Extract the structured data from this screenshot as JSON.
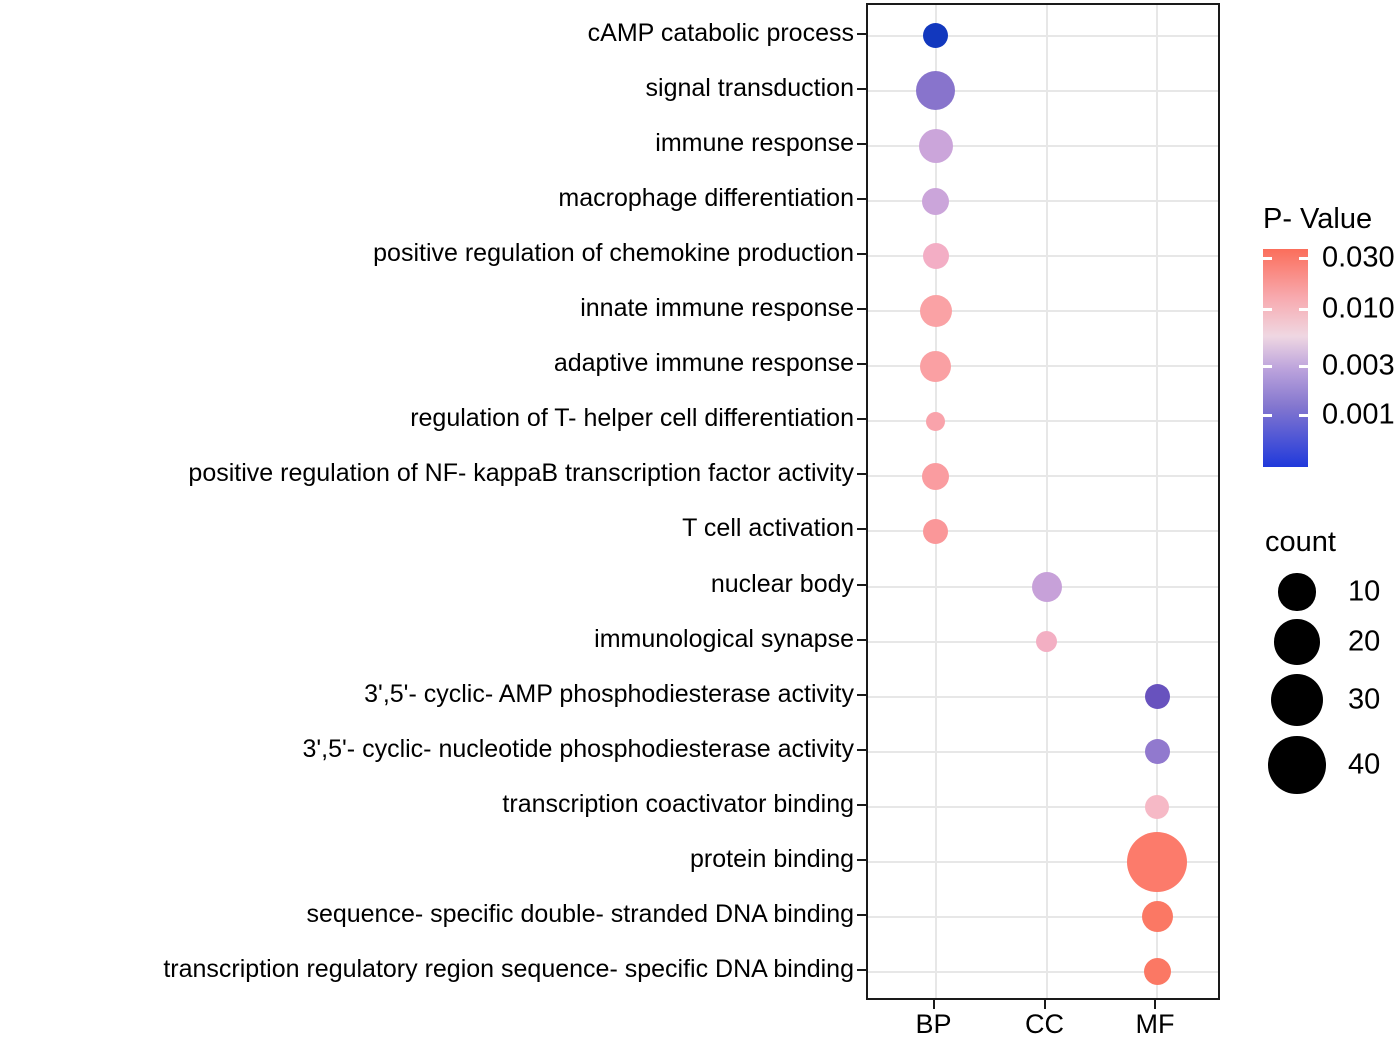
{
  "chart_data": {
    "type": "scatter",
    "subtype": "bubble-dotplot-go-enrichment",
    "title": "",
    "xlabel": "",
    "ylabel": "",
    "x_categories": [
      "BP",
      "CC",
      "MF"
    ],
    "grid": true,
    "legend_position": "right",
    "points": [
      {
        "term": "cAMP catabolic process",
        "category": "BP",
        "count": 2,
        "p_value": 0.0004,
        "color": "#1238BE",
        "r": 12.5
      },
      {
        "term": "signal transduction",
        "category": "BP",
        "count": 12,
        "p_value": 0.002,
        "color": "#8874CC",
        "r": 19.5
      },
      {
        "term": "immune response",
        "category": "BP",
        "count": 8,
        "p_value": 0.004,
        "color": "#CBA5DA",
        "r": 17
      },
      {
        "term": "macrophage differentiation",
        "category": "BP",
        "count": 3,
        "p_value": 0.004,
        "color": "#CBA5DA",
        "r": 13.5
      },
      {
        "term": "positive regulation of chemokine production",
        "category": "BP",
        "count": 3,
        "p_value": 0.008,
        "color": "#F3AEC5",
        "r": 13
      },
      {
        "term": "innate immune response",
        "category": "BP",
        "count": 6,
        "p_value": 0.012,
        "color": "#FAA2A5",
        "r": 16
      },
      {
        "term": "adaptive immune response",
        "category": "BP",
        "count": 5,
        "p_value": 0.012,
        "color": "#FAA0A3",
        "r": 15.5
      },
      {
        "term": "regulation of T- helper cell differentiation",
        "category": "BP",
        "count": 1,
        "p_value": 0.011,
        "color": "#F9A3AB",
        "r": 9.5
      },
      {
        "term": "positive regulation of NF- kappaB transcription factor activity",
        "category": "BP",
        "count": 3,
        "p_value": 0.013,
        "color": "#FA9CA0",
        "r": 13.5
      },
      {
        "term": "T cell activation",
        "category": "BP",
        "count": 2,
        "p_value": 0.014,
        "color": "#FA9799",
        "r": 12.5
      },
      {
        "term": "nuclear body",
        "category": "CC",
        "count": 5,
        "p_value": 0.004,
        "color": "#C7A1D9",
        "r": 15
      },
      {
        "term": "immunological synapse",
        "category": "CC",
        "count": 1,
        "p_value": 0.008,
        "color": "#F3AFC3",
        "r": 10.5
      },
      {
        "term": "3',5'- cyclic- AMP phosphodiesterase activity",
        "category": "MF",
        "count": 2,
        "p_value": 0.0015,
        "color": "#6852BE",
        "r": 12.5
      },
      {
        "term": "3',5'- cyclic- nucleotide phosphodiesterase activity",
        "category": "MF",
        "count": 2,
        "p_value": 0.002,
        "color": "#9179CE",
        "r": 12.5
      },
      {
        "term": "transcription coactivator binding",
        "category": "MF",
        "count": 2,
        "p_value": 0.007,
        "color": "#F6B9C6",
        "r": 12
      },
      {
        "term": "protein binding",
        "category": "MF",
        "count": 45,
        "p_value": 0.025,
        "color": "#FC7B6B",
        "r": 30
      },
      {
        "term": "sequence- specific double- stranded DNA binding",
        "category": "MF",
        "count": 5,
        "p_value": 0.028,
        "color": "#FB7864",
        "r": 15.5
      },
      {
        "term": "transcription regulatory region sequence- specific DNA binding",
        "category": "MF",
        "count": 3,
        "p_value": 0.028,
        "color": "#FB7864",
        "r": 13.5
      }
    ],
    "legend_pvalue": {
      "title": "P- Value",
      "tick_labels": [
        "0.030",
        "0.010",
        "0.003",
        "0.001"
      ],
      "gradient_stops": [
        {
          "pos": 0,
          "color": "#FB6E5B"
        },
        {
          "pos": 0.22,
          "color": "#F8A9AE"
        },
        {
          "pos": 0.4,
          "color": "#EFD7E2"
        },
        {
          "pos": 0.55,
          "color": "#BCA3DC"
        },
        {
          "pos": 0.72,
          "color": "#8477CF"
        },
        {
          "pos": 1,
          "color": "#2039DB"
        }
      ]
    },
    "legend_count": {
      "title": "count",
      "sizes": [
        10,
        20,
        30,
        40
      ],
      "size_labels": [
        "10",
        "20",
        "30",
        "40"
      ]
    }
  },
  "colors": {
    "panel_border": "#1a1a1a",
    "gridline": "#E7E7E7",
    "text": "#000000",
    "background": "#FFFFFF",
    "legend_dot": "#000000"
  }
}
